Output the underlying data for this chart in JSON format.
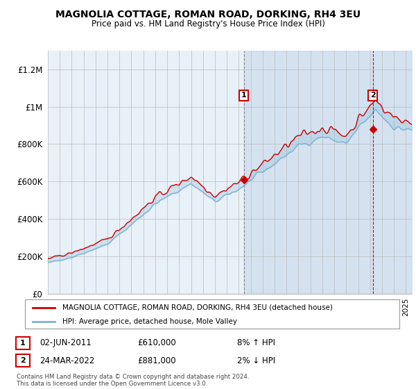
{
  "title": "MAGNOLIA COTTAGE, ROMAN ROAD, DORKING, RH4 3EU",
  "subtitle": "Price paid vs. HM Land Registry's House Price Index (HPI)",
  "hpi_color": "#7ab3d4",
  "price_color": "#cc0000",
  "shade_color": "#c8d9eb",
  "background_color": "#e8f0f8",
  "legend_label_red": "MAGNOLIA COTTAGE, ROMAN ROAD, DORKING, RH4 3EU (detached house)",
  "legend_label_blue": "HPI: Average price, detached house, Mole Valley",
  "annotation1_date": "02-JUN-2011",
  "annotation1_price": "£610,000",
  "annotation1_hpi": "8% ↑ HPI",
  "annotation2_date": "24-MAR-2022",
  "annotation2_price": "£881,000",
  "annotation2_hpi": "2% ↓ HPI",
  "footer": "Contains HM Land Registry data © Crown copyright and database right 2024.\nThis data is licensed under the Open Government Licence v3.0.",
  "ylim": [
    0,
    1300000
  ],
  "yticks": [
    0,
    200000,
    400000,
    600000,
    800000,
    1000000,
    1200000
  ],
  "ytick_labels": [
    "£0",
    "£200K",
    "£400K",
    "£600K",
    "£800K",
    "£1M",
    "£1.2M"
  ],
  "sale1_x": 2011.42,
  "sale1_y": 610000,
  "sale2_x": 2022.23,
  "sale2_y": 881000,
  "vline1_x": 2011.42,
  "vline2_x": 2022.23,
  "xmin": 1995,
  "xmax": 2025.5
}
